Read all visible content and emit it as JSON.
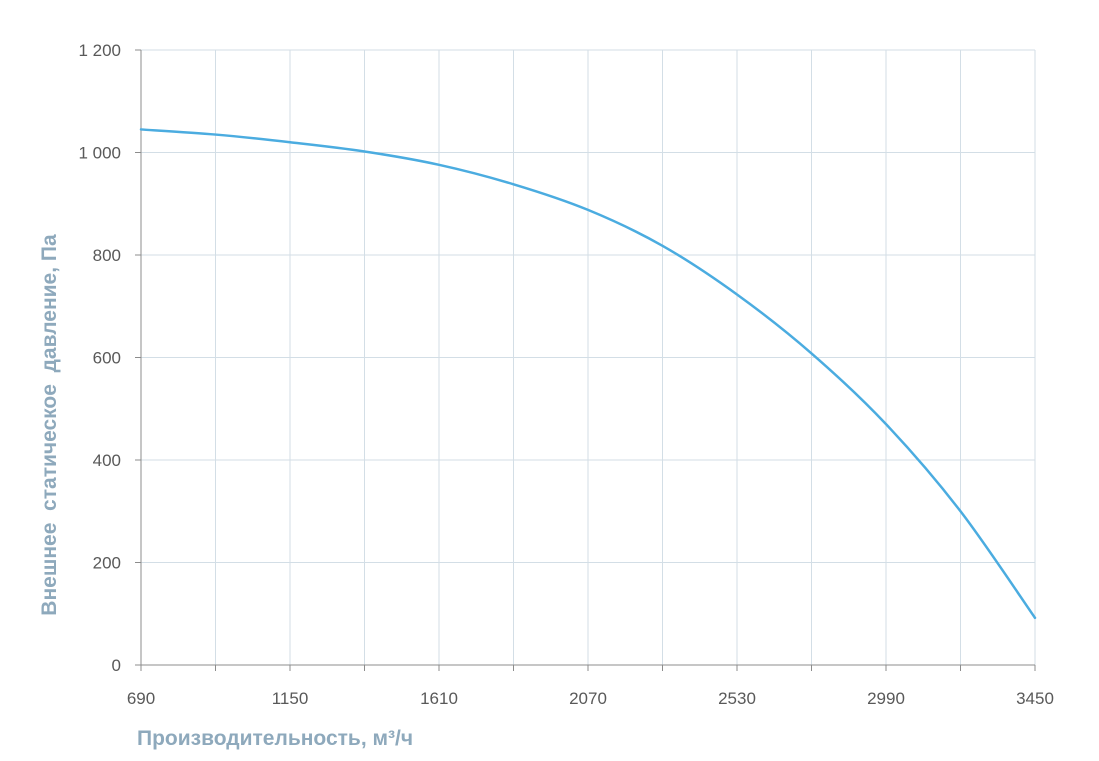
{
  "chart_data": {
    "type": "line",
    "title": "",
    "xlabel": "Производительность, м³/ч",
    "ylabel": "Внешнее  статическое  давление, Па",
    "xlim": [
      690,
      3450
    ],
    "ylim": [
      0,
      1200
    ],
    "x_ticks": [
      690,
      1150,
      1610,
      2070,
      2530,
      2990,
      3450
    ],
    "x_tick_labels": [
      "690",
      "1150",
      "1610",
      "2070",
      "2530",
      "2990",
      "3450"
    ],
    "x_minor_grid": [
      920,
      1380,
      1840,
      2300,
      2760,
      3220
    ],
    "y_ticks": [
      0,
      200,
      400,
      600,
      800,
      1000,
      1200
    ],
    "y_tick_labels": [
      "0",
      "200",
      "400",
      "600",
      "800",
      "1 000",
      "1 200"
    ],
    "grid": true,
    "legend": "none",
    "colors": {
      "line": "#4BACE0",
      "grid": "#D3DEE6",
      "axis_title": "#8EA9BC",
      "tick_text": "#595959"
    },
    "series": [
      {
        "x": [
          690,
          920,
          1150,
          1380,
          1610,
          1840,
          2070,
          2300,
          2530,
          2760,
          2990,
          3220,
          3450
        ],
        "values": [
          1045,
          1035,
          1020,
          1002,
          976,
          938,
          888,
          818,
          723,
          608,
          470,
          300,
          92
        ]
      }
    ]
  }
}
